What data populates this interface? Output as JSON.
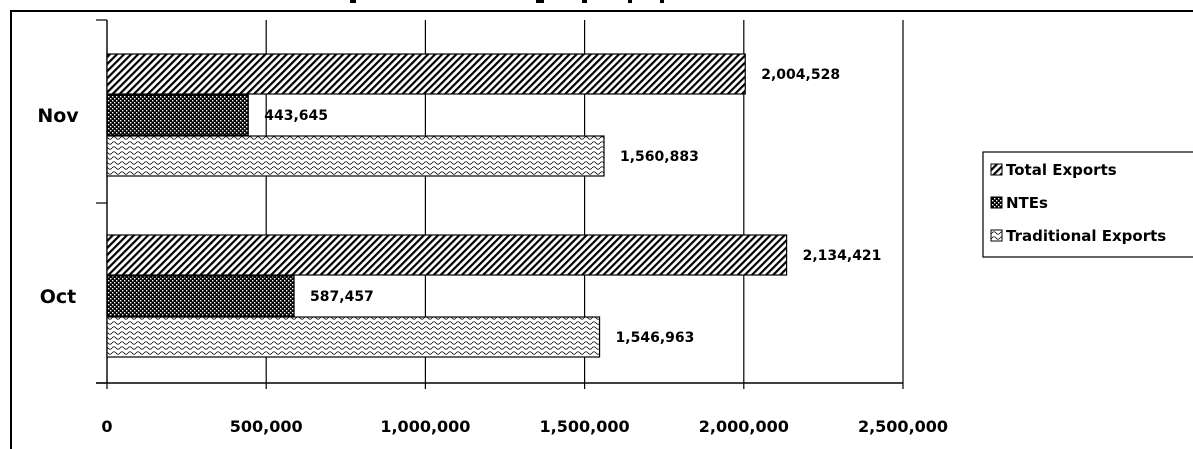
{
  "chart_data": {
    "type": "bar",
    "orientation": "horizontal",
    "title": "",
    "xlabel": "",
    "ylabel": "",
    "categories": [
      "Nov",
      "Oct"
    ],
    "series": [
      {
        "name": "Total Exports",
        "values": [
          2004528,
          2134421
        ],
        "labels": [
          "2,004,528",
          "2,134,421"
        ],
        "pattern": "diagonal-hatch"
      },
      {
        "name": "NTEs",
        "values": [
          443645,
          587457
        ],
        "labels": [
          "443,645",
          "587,457"
        ],
        "pattern": "dark-checker"
      },
      {
        "name": "Traditional Exports",
        "values": [
          1560883,
          1546963
        ],
        "labels": [
          "1,560,883",
          "1,546,963"
        ],
        "pattern": "light-wave"
      }
    ],
    "xlim": [
      0,
      2500000
    ],
    "x_ticks": [
      0,
      500000,
      1000000,
      1500000,
      2000000,
      2500000
    ],
    "x_tick_labels": [
      "0",
      "500,000",
      "1,000,000",
      "1,500,000",
      "2,000,000",
      "2,500,000"
    ],
    "grid": "vertical major gridlines",
    "legend_position": "right"
  }
}
